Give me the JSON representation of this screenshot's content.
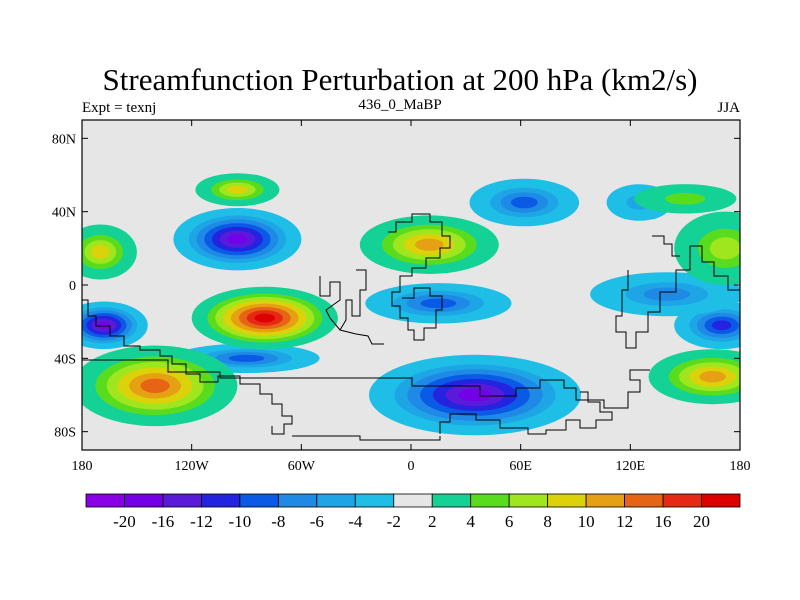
{
  "title": "Streamfunction Perturbation at 200 hPa (km2/s)",
  "subtitle_left": "Expt = texnj",
  "subtitle_center": "436_0_MaBP",
  "subtitle_right": "JJA",
  "colors": {
    "background_field": "#e6e6e6",
    "coastline": "#000000",
    "frame": "#000000"
  },
  "chart_data": {
    "type": "heatmap",
    "title": "Streamfunction Perturbation at 200 hPa (km2/s)",
    "x_axis": {
      "range": [
        -180,
        180
      ],
      "ticks": [
        {
          "value": -180,
          "label": "180"
        },
        {
          "value": -120,
          "label": "120W"
        },
        {
          "value": -60,
          "label": "60W"
        },
        {
          "value": 0,
          "label": "0"
        },
        {
          "value": 60,
          "label": "60E"
        },
        {
          "value": 120,
          "label": "120E"
        },
        {
          "value": 180,
          "label": "180"
        }
      ]
    },
    "y_axis": {
      "range": [
        -90,
        90
      ],
      "ticks": [
        {
          "value": 80,
          "label": "80N"
        },
        {
          "value": 40,
          "label": "40N"
        },
        {
          "value": 0,
          "label": "0"
        },
        {
          "value": -40,
          "label": "40S"
        },
        {
          "value": -80,
          "label": "80S"
        }
      ]
    },
    "colorbar": {
      "levels": [
        "-20",
        "-16",
        "-12",
        "-10",
        "-8",
        "-6",
        "-4",
        "-2",
        "2",
        "4",
        "6",
        "8",
        "10",
        "12",
        "16",
        "20"
      ],
      "colors": [
        "#8a00e6",
        "#7300e6",
        "#5a1ad9",
        "#2424e0",
        "#0a5ae6",
        "#1e8ae6",
        "#1ea5e6",
        "#1ebee6",
        "#e6e6e6",
        "#14d296",
        "#5adc1e",
        "#a0e61e",
        "#dcd20a",
        "#e6a014",
        "#e66414",
        "#e62814",
        "#dc0000"
      ]
    },
    "field_features": [
      {
        "lon": -95,
        "lat": 25,
        "value": -18,
        "rx": 35,
        "ry": 17
      },
      {
        "lon": -168,
        "lat": -22,
        "value": -16,
        "rx": 24,
        "ry": 13
      },
      {
        "lon": 170,
        "lat": -22,
        "value": -10,
        "rx": 26,
        "ry": 13
      },
      {
        "lon": 35,
        "lat": -60,
        "value": -18,
        "rx": 58,
        "ry": 22
      },
      {
        "lon": 62,
        "lat": 45,
        "value": -8,
        "rx": 30,
        "ry": 13
      },
      {
        "lon": 15,
        "lat": -10,
        "value": -8,
        "rx": 40,
        "ry": 11
      },
      {
        "lon": 140,
        "lat": -5,
        "value": -6,
        "rx": 42,
        "ry": 12
      },
      {
        "lon": -90,
        "lat": -40,
        "value": -8,
        "rx": 40,
        "ry": 8
      },
      {
        "lon": -80,
        "lat": -18,
        "value": 20,
        "rx": 40,
        "ry": 17
      },
      {
        "lon": -140,
        "lat": -55,
        "value": 14,
        "rx": 45,
        "ry": 22
      },
      {
        "lon": 10,
        "lat": 22,
        "value": 10,
        "rx": 38,
        "ry": 16
      },
      {
        "lon": -95,
        "lat": 52,
        "value": 8,
        "rx": 23,
        "ry": 9
      },
      {
        "lon": 165,
        "lat": -50,
        "value": 10,
        "rx": 35,
        "ry": 15
      },
      {
        "lon": -170,
        "lat": 18,
        "value": 8,
        "rx": 20,
        "ry": 15
      },
      {
        "lon": 172,
        "lat": 20,
        "value": 6,
        "rx": 28,
        "ry": 20
      },
      {
        "lon": 125,
        "lat": 45,
        "value": -4,
        "rx": 18,
        "ry": 10
      },
      {
        "lon": 150,
        "lat": 47,
        "value": 4,
        "rx": 28,
        "ry": 8
      }
    ]
  }
}
